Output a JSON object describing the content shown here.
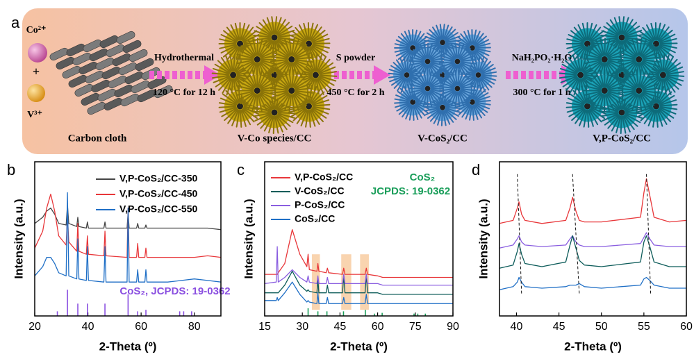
{
  "scheme": {
    "label": "a",
    "ion1": "Co²⁺",
    "plus": "+",
    "ion2": "V³⁺",
    "steps": [
      {
        "reagent": "Hydrothermal",
        "condition": "120 °C for 12 h"
      },
      {
        "reagent": "S powder",
        "condition": "450 °C for 2 h"
      },
      {
        "reagent": "NaH₂PO₂·H₂O",
        "condition": "300 °C for 1 h"
      }
    ],
    "products": [
      "Carbon cloth",
      "V-Co species/CC",
      "V-CoS₂/CC",
      "V,P-CoS₂/CC"
    ]
  },
  "chart_data": [
    {
      "type": "line",
      "panel": "b",
      "xlabel": "2-Theta (º)",
      "ylabel": "Intensity (a.u.)",
      "xlim": [
        20,
        90
      ],
      "xticks": [
        20,
        40,
        60,
        80
      ],
      "ylim": [
        0,
        100
      ],
      "x": [
        20,
        23,
        24.5,
        26,
        27.5,
        29,
        31.8,
        32.3,
        32.8,
        35.8,
        36.2,
        36.6,
        39.4,
        39.8,
        40.2,
        46,
        46.4,
        46.8,
        54.7,
        55.1,
        55.5,
        58.3,
        58.7,
        59.1,
        61.4,
        61.8,
        62.2,
        70,
        80,
        85,
        90
      ],
      "series": [
        {
          "name": "V,P-CoS₂/CC-350",
          "color": "#444444",
          "values": [
            60,
            64,
            68,
            70,
            66,
            60,
            59,
            72,
            60,
            58,
            64,
            58,
            57,
            61,
            57,
            57,
            61,
            57,
            57,
            67,
            57,
            57,
            60,
            57,
            57,
            59,
            57,
            57,
            57,
            57,
            56
          ]
        },
        {
          "name": "V,P-CoS₂/CC-450",
          "color": "#e8373a",
          "values": [
            44,
            55,
            70,
            79,
            68,
            52,
            46,
            65,
            48,
            42,
            60,
            42,
            40,
            52,
            40,
            39,
            55,
            39,
            38,
            70,
            38,
            38,
            47,
            38,
            38,
            44,
            38,
            38,
            38,
            39,
            38
          ]
        },
        {
          "name": "V,P-CoS₂/CC-550",
          "color": "#1f6fc6",
          "values": [
            26,
            32,
            38,
            38,
            34,
            28,
            26,
            80,
            26,
            24,
            50,
            24,
            23,
            45,
            23,
            22,
            45,
            22,
            22,
            70,
            22,
            22,
            30,
            22,
            22,
            30,
            22,
            22,
            24,
            23,
            22
          ]
        }
      ],
      "annotation": [
        "CoS₂, JCPDS: 19-0362"
      ],
      "reference": {
        "color": "#8a4fe0",
        "x": [
          28.5,
          32.3,
          36.2,
          39.8,
          46.4,
          55.1,
          58.7,
          61.8,
          74.5,
          76,
          79
        ],
        "values": [
          3,
          17,
          8,
          8,
          8,
          14,
          3,
          4,
          3,
          3,
          3
        ]
      }
    },
    {
      "type": "line",
      "panel": "c",
      "xlabel": "2-Theta (º)",
      "ylabel": "Intensity (a.u.)",
      "xlim": [
        15,
        90
      ],
      "xticks": [
        15,
        30,
        45,
        60,
        75,
        90
      ],
      "ylim": [
        0,
        100
      ],
      "x": [
        15,
        19.6,
        20,
        20.4,
        23,
        26,
        29,
        31.8,
        32.3,
        32.8,
        35.8,
        36.2,
        36.6,
        39.5,
        40,
        40.5,
        46,
        46.5,
        47,
        55,
        55.5,
        56,
        60,
        62,
        65,
        75,
        90
      ],
      "series": [
        {
          "name": "V,P-CoS₂/CC",
          "color": "#e8373a",
          "values": [
            27,
            27,
            27,
            28,
            34,
            56,
            40,
            32,
            40,
            30,
            29,
            34,
            29,
            28,
            31,
            28,
            27,
            31,
            27,
            27,
            31,
            27,
            26,
            25,
            25,
            25,
            25
          ]
        },
        {
          "name": "V-CoS₂/CC",
          "color": "#0d5c5a",
          "values": [
            15,
            15,
            15,
            15,
            20,
            29,
            20,
            16,
            17,
            16,
            15,
            24,
            15,
            15,
            20,
            15,
            15,
            26,
            15,
            15,
            27,
            15,
            15,
            14,
            14,
            14,
            14
          ]
        },
        {
          "name": "P-CoS₂/CC",
          "color": "#8a5ee0",
          "values": [
            21,
            22,
            45,
            22,
            25,
            30,
            25,
            22,
            26,
            22,
            21,
            26,
            21,
            21,
            25,
            21,
            21,
            27,
            21,
            21,
            27,
            21,
            21,
            20,
            20,
            20,
            20
          ]
        },
        {
          "name": "CoS₂/CC",
          "color": "#1f6fc6",
          "values": [
            10,
            10,
            12,
            10,
            15,
            22,
            14,
            9,
            10,
            9,
            8,
            15,
            8,
            8,
            12,
            8,
            8,
            12,
            8,
            8,
            14,
            8,
            8,
            8,
            8,
            8,
            8
          ]
        }
      ],
      "annotation": [
        "CoS₂",
        "JCPDS: 19-0362"
      ],
      "reference": {
        "color": "#1a9e5a",
        "x": [
          32.3,
          36.2,
          39.8,
          46.4,
          55.1,
          58.7,
          61.8,
          74.5,
          76,
          79
        ],
        "values": [
          5,
          3,
          3,
          3,
          4,
          1.5,
          2,
          1.5,
          1.5,
          1.5
        ]
      },
      "highlights": [
        [
          33.8,
          37
        ],
        [
          45.5,
          49.5
        ],
        [
          53,
          56.5
        ]
      ]
    },
    {
      "type": "line",
      "panel": "d",
      "xlabel": "2-Theta (º)",
      "ylabel": "Intensity (a.u.)",
      "xlim": [
        38,
        60
      ],
      "xticks": [
        40,
        45,
        50,
        55,
        60
      ],
      "ylim": [
        0,
        100
      ],
      "x": [
        38,
        39.6,
        40.1,
        40.3,
        40.6,
        41,
        43,
        45.8,
        46.3,
        46.6,
        47,
        47.4,
        48,
        50,
        54.6,
        55,
        55.3,
        55.7,
        56.2,
        58,
        60
      ],
      "series": [
        {
          "color": "#e8373a",
          "values": [
            60,
            62,
            70,
            74,
            66,
            62,
            60,
            62,
            70,
            77,
            68,
            62,
            61,
            61,
            64,
            80,
            89,
            78,
            64,
            61,
            62
          ]
        },
        {
          "color": "#8a5ee0",
          "values": [
            44,
            46,
            50,
            52,
            48,
            46,
            45,
            46,
            50,
            52,
            48,
            46,
            45,
            45,
            47,
            51,
            54,
            50,
            46,
            45,
            45
          ]
        },
        {
          "color": "#0d5c5a",
          "values": [
            31,
            33,
            42,
            47,
            40,
            34,
            32,
            35,
            46,
            52,
            44,
            36,
            33,
            32,
            35,
            48,
            52,
            45,
            35,
            32,
            32
          ]
        },
        {
          "color": "#1f6fc6",
          "values": [
            17,
            19,
            22,
            25,
            22,
            19,
            18,
            19,
            20,
            20,
            20,
            21,
            19,
            18,
            20,
            24,
            25,
            23,
            20,
            18,
            18
          ]
        }
      ],
      "guides": [
        [
          40.1,
          40.6
        ],
        [
          46.6,
          47.4
        ],
        [
          55.3,
          55.8
        ]
      ]
    }
  ]
}
